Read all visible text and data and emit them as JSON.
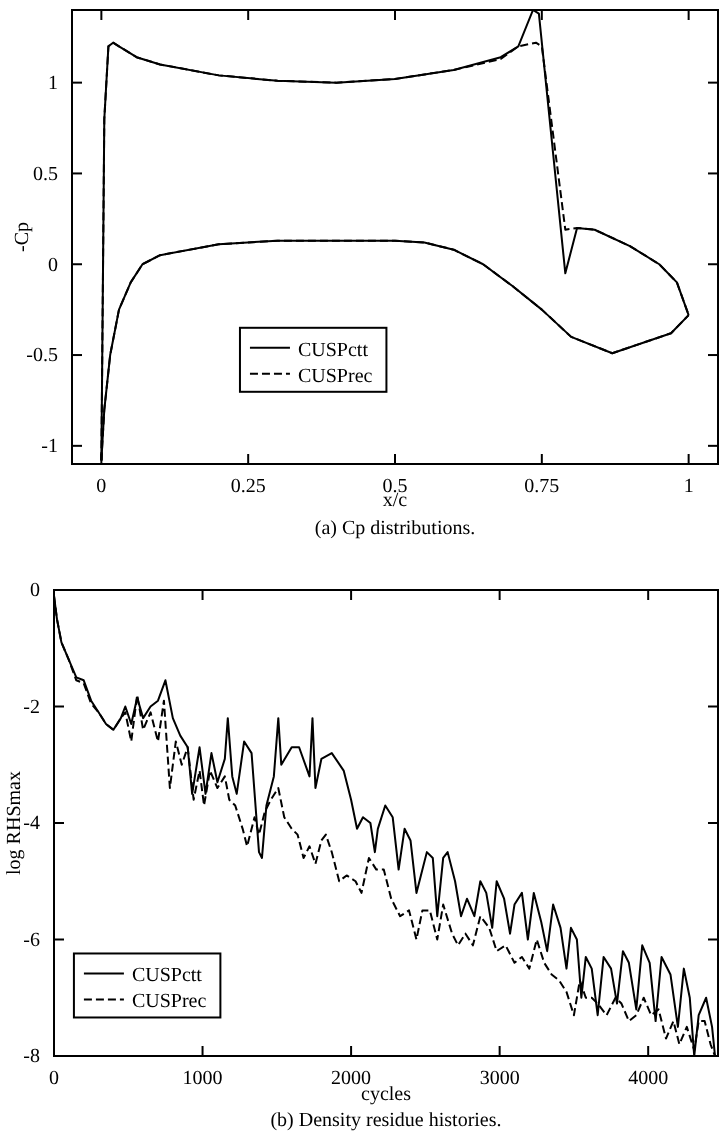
{
  "chart_data": [
    {
      "type": "line",
      "xlabel": "x/c",
      "ylabel": "-Cp",
      "annotations": [
        "(a) Cp distributions."
      ],
      "xlim": [
        -0.05,
        1.05
      ],
      "ylim": [
        -1.1,
        1.4
      ],
      "xticks": [
        0,
        0.25,
        0.5,
        0.75,
        1
      ],
      "yticks": [
        -1,
        -0.5,
        0,
        0.5,
        1
      ],
      "legend": "bottom left",
      "grid": false,
      "series": [
        {
          "name": "CUSPctt",
          "color": "#000000",
          "line_style": "solid",
          "x": [
            0,
            0.005,
            0.012,
            0.02,
            0.03,
            0.06,
            0.1,
            0.2,
            0.3,
            0.4,
            0.5,
            0.6,
            0.68,
            0.71,
            0.735,
            0.745,
            0.79,
            0.81,
            0.84,
            0.9,
            0.95,
            0.98,
            1.0
          ],
          "values": [
            -1.08,
            0.8,
            1.2,
            1.22,
            1.2,
            1.14,
            1.1,
            1.04,
            1.01,
            1.0,
            1.02,
            1.07,
            1.14,
            1.2,
            1.4,
            1.38,
            -0.05,
            0.2,
            0.19,
            0.1,
            0.0,
            -0.1,
            -0.28
          ]
        },
        {
          "name": "CUSPrec",
          "color": "#000000",
          "line_style": "dashed",
          "x": [
            0,
            0.005,
            0.012,
            0.02,
            0.03,
            0.06,
            0.1,
            0.2,
            0.3,
            0.4,
            0.5,
            0.6,
            0.68,
            0.71,
            0.74,
            0.75,
            0.79,
            0.81,
            0.84,
            0.9,
            0.95,
            0.98,
            1.0
          ],
          "values": [
            -1.08,
            0.8,
            1.2,
            1.22,
            1.2,
            1.14,
            1.1,
            1.04,
            1.01,
            1.0,
            1.02,
            1.07,
            1.13,
            1.2,
            1.22,
            1.2,
            0.19,
            0.2,
            0.19,
            0.1,
            0.0,
            -0.1,
            -0.28
          ]
        },
        {
          "color": "#000000",
          "line_style": "solid",
          "x": [
            0,
            0.005,
            0.015,
            0.03,
            0.05,
            0.07,
            0.1,
            0.2,
            0.3,
            0.5,
            0.55,
            0.6,
            0.65,
            0.7,
            0.75,
            0.8,
            0.87,
            0.97,
            1.0
          ],
          "values": [
            -1.08,
            -0.8,
            -0.5,
            -0.25,
            -0.1,
            0.0,
            0.05,
            0.11,
            0.13,
            0.13,
            0.12,
            0.08,
            0.0,
            -0.12,
            -0.25,
            -0.4,
            -0.49,
            -0.38,
            -0.28
          ]
        },
        {
          "color": "#000000",
          "line_style": "dashed",
          "x": [
            0,
            0.005,
            0.015,
            0.03,
            0.05,
            0.07,
            0.1,
            0.2,
            0.3,
            0.5,
            0.55,
            0.6,
            0.65,
            0.7,
            0.75,
            0.8,
            0.87,
            0.97,
            1.0
          ],
          "values": [
            -1.08,
            -0.8,
            -0.5,
            -0.25,
            -0.1,
            0.0,
            0.05,
            0.11,
            0.13,
            0.13,
            0.12,
            0.08,
            0.0,
            -0.12,
            -0.25,
            -0.4,
            -0.49,
            -0.38,
            -0.28
          ]
        }
      ]
    },
    {
      "type": "line",
      "xlabel": "cycles",
      "ylabel": "log RHSmax",
      "annotations": [
        "(b) Density residue histories."
      ],
      "xlim": [
        0,
        4470
      ],
      "ylim": [
        -8,
        0
      ],
      "xticks": [
        0,
        1000,
        2000,
        3000,
        4000
      ],
      "yticks": [
        -8,
        -6,
        -4,
        -2,
        0
      ],
      "legend": "bottom left",
      "grid": false,
      "series": [
        {
          "name": "CUSPctt",
          "color": "#000000",
          "line_style": "solid",
          "x": [
            0,
            20,
            50,
            100,
            150,
            200,
            250,
            300,
            350,
            400,
            450,
            480,
            520,
            560,
            600,
            650,
            700,
            750,
            800,
            850,
            900,
            930,
            980,
            1020,
            1060,
            1100,
            1150,
            1170,
            1200,
            1230,
            1280,
            1330,
            1380,
            1400,
            1430,
            1480,
            1510,
            1530,
            1600,
            1650,
            1720,
            1740,
            1760,
            1800,
            1870,
            1950,
            2000,
            2040,
            2080,
            2130,
            2160,
            2180,
            2230,
            2280,
            2320,
            2360,
            2400,
            2440,
            2470,
            2510,
            2550,
            2580,
            2620,
            2650,
            2700,
            2740,
            2780,
            2830,
            2870,
            2910,
            2950,
            2980,
            3030,
            3070,
            3100,
            3150,
            3190,
            3230,
            3280,
            3320,
            3360,
            3410,
            3450,
            3480,
            3520,
            3550,
            3580,
            3620,
            3660,
            3700,
            3750,
            3790,
            3830,
            3870,
            3920,
            3960,
            4010,
            4050,
            4090,
            4150,
            4200,
            4240,
            4280,
            4310,
            4340,
            4390,
            4430,
            4450
          ],
          "values": [
            -0.1,
            -0.5,
            -0.9,
            -1.2,
            -1.5,
            -1.55,
            -1.9,
            -2.1,
            -2.3,
            -2.4,
            -2.2,
            -2.0,
            -2.3,
            -1.85,
            -2.2,
            -2.0,
            -1.9,
            -1.55,
            -2.2,
            -2.5,
            -2.7,
            -3.5,
            -2.7,
            -3.5,
            -2.8,
            -3.3,
            -2.9,
            -2.2,
            -3.2,
            -3.5,
            -2.6,
            -2.8,
            -4.5,
            -4.6,
            -3.7,
            -3.2,
            -2.2,
            -3.0,
            -2.7,
            -2.7,
            -3.2,
            -2.2,
            -3.4,
            -2.9,
            -2.8,
            -3.1,
            -3.6,
            -4.1,
            -3.9,
            -4.0,
            -4.5,
            -4.1,
            -3.7,
            -3.9,
            -4.8,
            -4.1,
            -4.3,
            -5.2,
            -4.9,
            -4.5,
            -4.6,
            -5.6,
            -4.6,
            -4.5,
            -5.0,
            -5.6,
            -5.3,
            -5.6,
            -5.0,
            -5.2,
            -5.8,
            -5.0,
            -5.3,
            -5.9,
            -5.4,
            -5.2,
            -6.0,
            -5.2,
            -5.7,
            -6.2,
            -5.4,
            -5.8,
            -6.5,
            -5.8,
            -6.0,
            -7.0,
            -6.3,
            -6.5,
            -7.3,
            -6.3,
            -6.5,
            -7.1,
            -6.2,
            -6.4,
            -7.2,
            -6.1,
            -6.4,
            -7.4,
            -6.3,
            -6.6,
            -7.5,
            -6.5,
            -7.0,
            -8.0,
            -7.3,
            -7.0,
            -7.5,
            -8.0
          ]
        },
        {
          "name": "CUSPrec",
          "color": "#000000",
          "line_style": "dashed",
          "x": [
            0,
            20,
            50,
            100,
            150,
            200,
            250,
            300,
            350,
            400,
            450,
            480,
            520,
            560,
            600,
            650,
            700,
            740,
            780,
            820,
            860,
            900,
            940,
            980,
            1010,
            1050,
            1100,
            1150,
            1180,
            1220,
            1270,
            1300,
            1350,
            1380,
            1420,
            1460,
            1510,
            1550,
            1600,
            1640,
            1680,
            1720,
            1760,
            1800,
            1830,
            1870,
            1920,
            1970,
            2030,
            2070,
            2120,
            2170,
            2220,
            2270,
            2330,
            2390,
            2440,
            2480,
            2530,
            2580,
            2620,
            2680,
            2720,
            2770,
            2820,
            2870,
            2930,
            2980,
            3040,
            3100,
            3150,
            3200,
            3250,
            3300,
            3350,
            3400,
            3450,
            3500,
            3540,
            3580,
            3620,
            3660,
            3720,
            3780,
            3820,
            3870,
            3920,
            3970,
            4020,
            4070,
            4120,
            4170,
            4210,
            4260,
            4310,
            4340,
            4380,
            4420,
            4450
          ],
          "values": [
            -0.1,
            -0.5,
            -0.9,
            -1.2,
            -1.55,
            -1.6,
            -1.95,
            -2.1,
            -2.3,
            -2.4,
            -2.2,
            -2.1,
            -2.6,
            -1.8,
            -2.4,
            -2.1,
            -2.6,
            -1.9,
            -3.4,
            -2.6,
            -3.0,
            -2.7,
            -3.6,
            -3.1,
            -3.7,
            -3.1,
            -3.4,
            -3.2,
            -3.6,
            -3.7,
            -4.1,
            -4.4,
            -3.9,
            -4.2,
            -3.8,
            -3.6,
            -3.4,
            -3.9,
            -4.1,
            -4.2,
            -4.6,
            -4.4,
            -4.7,
            -4.3,
            -4.2,
            -4.5,
            -5.0,
            -4.9,
            -5.0,
            -5.2,
            -4.6,
            -4.8,
            -4.8,
            -5.3,
            -5.6,
            -5.5,
            -6.0,
            -5.5,
            -5.5,
            -6.0,
            -5.4,
            -5.9,
            -6.1,
            -5.9,
            -6.1,
            -5.6,
            -5.8,
            -6.2,
            -6.1,
            -6.4,
            -6.3,
            -6.5,
            -6.0,
            -6.4,
            -6.6,
            -6.7,
            -6.9,
            -7.3,
            -6.7,
            -7.0,
            -7.0,
            -7.1,
            -7.3,
            -7.0,
            -7.1,
            -7.4,
            -7.3,
            -7.0,
            -7.3,
            -7.2,
            -7.7,
            -7.4,
            -7.8,
            -7.5,
            -7.9,
            -7.4,
            -7.4,
            -7.8,
            -8.0
          ]
        }
      ]
    }
  ]
}
